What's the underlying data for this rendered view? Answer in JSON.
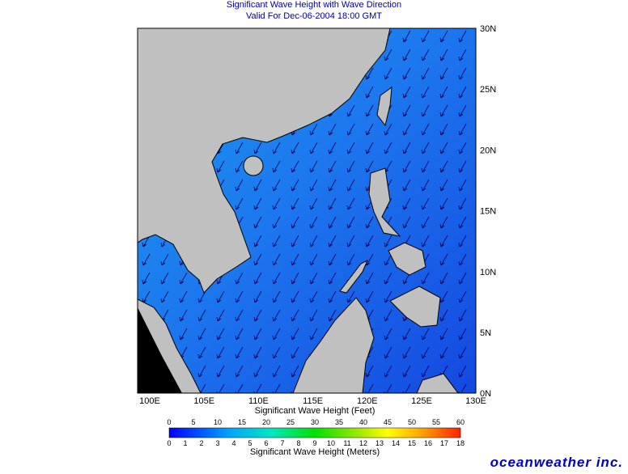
{
  "title": "Significant Wave Height with Wave Direction",
  "subtitle": "Valid For Dec-06-2004 18:00 GMT",
  "lon_labels": [
    "100E",
    "105E",
    "110E",
    "115E",
    "120E",
    "125E",
    "130E"
  ],
  "lat_labels": [
    "30N",
    "25N",
    "20N",
    "15N",
    "10N",
    "5N",
    "0N"
  ],
  "colorbar": {
    "feet_label": "Significant Wave Height (Feet)",
    "feet_ticks": [
      "0",
      "5",
      "10",
      "15",
      "20",
      "25",
      "30",
      "35",
      "40",
      "45",
      "50",
      "55",
      "60"
    ],
    "meter_ticks": [
      "0",
      "1",
      "2",
      "3",
      "4",
      "5",
      "6",
      "7",
      "8",
      "9",
      "10",
      "11",
      "12",
      "13",
      "14",
      "15",
      "16",
      "17",
      "18"
    ],
    "meters_label": "Significant Wave Height (Meters)"
  },
  "brand": "oceanweather inc."
}
